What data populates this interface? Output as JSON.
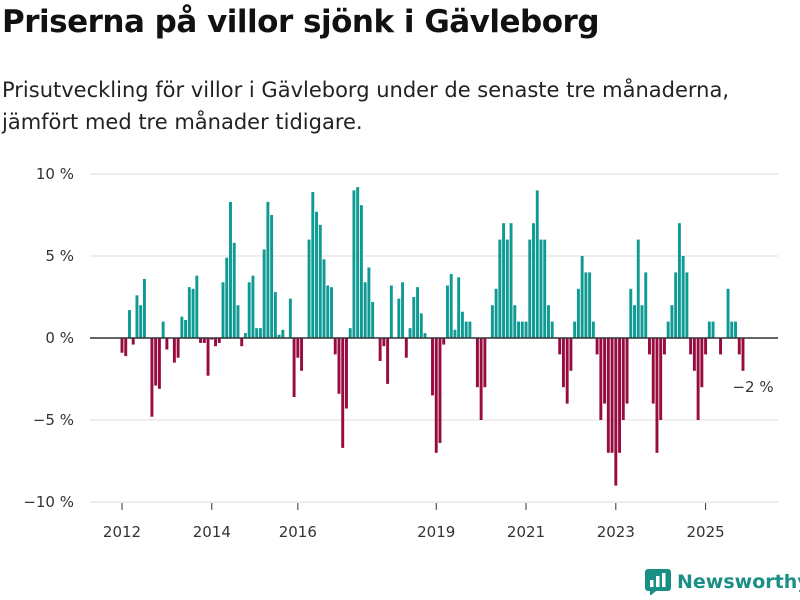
{
  "title": "Priserna på villor sjönk i Gävleborg",
  "subtitle": "Prisutveckling för villor i Gävleborg under de senaste tre månaderna, jämfört med tre månader tidigare.",
  "brand": {
    "name": "Newsworthy",
    "icon": "bar-chart-logo-icon"
  },
  "colors": {
    "positive": "#0f9a93",
    "negative": "#980b3f",
    "grid": "#dddddd",
    "zero_line": "#333333",
    "brand": "#1a8f86"
  },
  "chart_data": {
    "type": "bar",
    "title": "Priserna på villor sjönk i Gävleborg",
    "xlabel": "",
    "ylabel": "",
    "ylim": [
      -10,
      10
    ],
    "grid": true,
    "yticks": [
      {
        "value": 10,
        "label": "10 %"
      },
      {
        "value": 5,
        "label": "5 %"
      },
      {
        "value": 0,
        "label": "0 %"
      },
      {
        "value": -5,
        "label": "−5 %"
      },
      {
        "value": -10,
        "label": "−10 %"
      }
    ],
    "xticks": [
      {
        "index": 0,
        "label": "2012"
      },
      {
        "index": 24,
        "label": "2014"
      },
      {
        "index": 47,
        "label": "2016"
      },
      {
        "index": 84,
        "label": "2019"
      },
      {
        "index": 108,
        "label": "2021"
      },
      {
        "index": 132,
        "label": "2023"
      },
      {
        "index": 156,
        "label": "2025"
      }
    ],
    "annotation": {
      "label": "−2 %",
      "value": -2,
      "index": 168
    },
    "series": [
      {
        "name": "Prisutveckling",
        "values": [
          -0.9,
          -1.1,
          1.7,
          -0.4,
          2.6,
          2.0,
          3.6,
          0,
          -4.8,
          -2.9,
          -3.1,
          1.0,
          -0.7,
          0,
          -1.5,
          -1.2,
          1.3,
          1.1,
          3.1,
          3.0,
          3.8,
          -0.3,
          -0.3,
          -2.3,
          -0.1,
          -0.5,
          -0.3,
          3.4,
          4.9,
          8.3,
          5.8,
          2.0,
          -0.5,
          0.3,
          3.4,
          3.8,
          0.6,
          0.6,
          5.4,
          8.3,
          7.5,
          2.8,
          0.2,
          0.5,
          0,
          2.4,
          -3.6,
          -1.2,
          -2.0,
          0,
          6.0,
          8.9,
          7.7,
          6.9,
          4.8,
          3.2,
          3.1,
          -1.0,
          -3.4,
          -6.7,
          -4.3,
          0.6,
          9.0,
          9.2,
          8.1,
          3.4,
          4.3,
          2.2,
          0,
          -1.4,
          -0.5,
          -2.8,
          3.2,
          0,
          2.4,
          3.4,
          -1.2,
          0.6,
          2.5,
          3.1,
          1.5,
          0.3,
          0,
          -3.5,
          -7.0,
          -6.4,
          -0.4,
          3.2,
          3.9,
          0.5,
          3.7,
          1.6,
          1.0,
          1.0,
          0,
          -3.0,
          -5.0,
          -3.0,
          0,
          2.0,
          3.0,
          6.0,
          7.0,
          6.0,
          7.0,
          2.0,
          1.0,
          1.0,
          1.0,
          6.0,
          7.0,
          9.0,
          6.0,
          6.0,
          2.0,
          1.0,
          0,
          -1.0,
          -3.0,
          -4.0,
          -2.0,
          1.0,
          3.0,
          5.0,
          4.0,
          4.0,
          1.0,
          -1.0,
          -5.0,
          -4.0,
          -7.0,
          -7.0,
          -9.0,
          -7.0,
          -5.0,
          -4.0,
          3.0,
          2.0,
          6.0,
          2.0,
          4.0,
          -1.0,
          -4.0,
          -7.0,
          -5.0,
          -1.0,
          1.0,
          2.0,
          4.0,
          7.0,
          5.0,
          4.0,
          -1.0,
          -2.0,
          -5.0,
          -3.0,
          -1.0,
          1.0,
          1.0,
          0,
          -1.0,
          0,
          3.0,
          1.0,
          1.0,
          -1.0,
          -2.0
        ]
      }
    ]
  }
}
